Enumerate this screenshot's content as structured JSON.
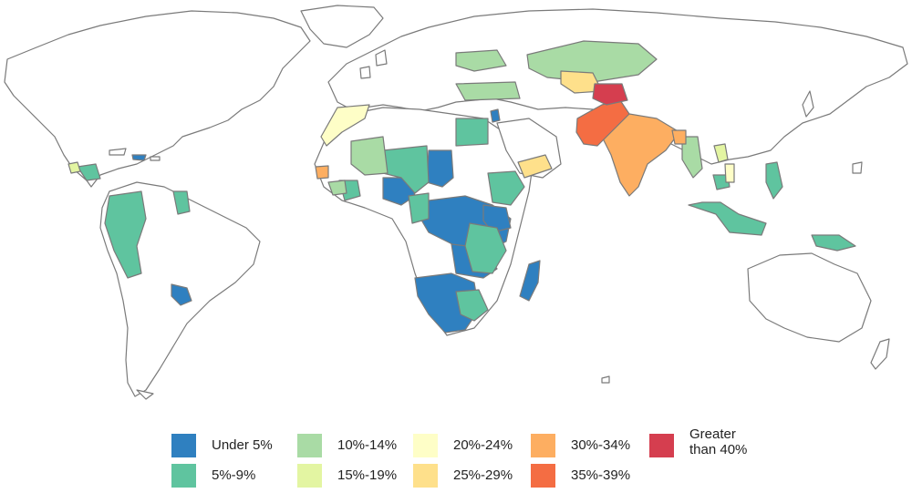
{
  "legend": {
    "items": [
      {
        "key": "under5",
        "label": "Under 5%",
        "color": "#2f80c0"
      },
      {
        "key": "5to9",
        "label": "5%-9%",
        "color": "#5fc49f"
      },
      {
        "key": "10to14",
        "label": "10%-14%",
        "color": "#a9dba5"
      },
      {
        "key": "15to19",
        "label": "15%-19%",
        "color": "#e3f5a2"
      },
      {
        "key": "20to24",
        "label": "20%-24%",
        "color": "#fefec7"
      },
      {
        "key": "25to29",
        "label": "25%-29%",
        "color": "#fee08b"
      },
      {
        "key": "30to34",
        "label": "30%-34%",
        "color": "#fdae61"
      },
      {
        "key": "35to39",
        "label": "35%-39%",
        "color": "#f46d43"
      },
      {
        "key": "over40",
        "label": "Greater than 40%",
        "label_line1": "Greater",
        "label_line2": "than 40%",
        "color": "#d53e4f"
      }
    ]
  },
  "colors": {
    "background": "#ffffff",
    "land_unshaded": "#ffffff",
    "border": "#7a7a7a"
  }
}
